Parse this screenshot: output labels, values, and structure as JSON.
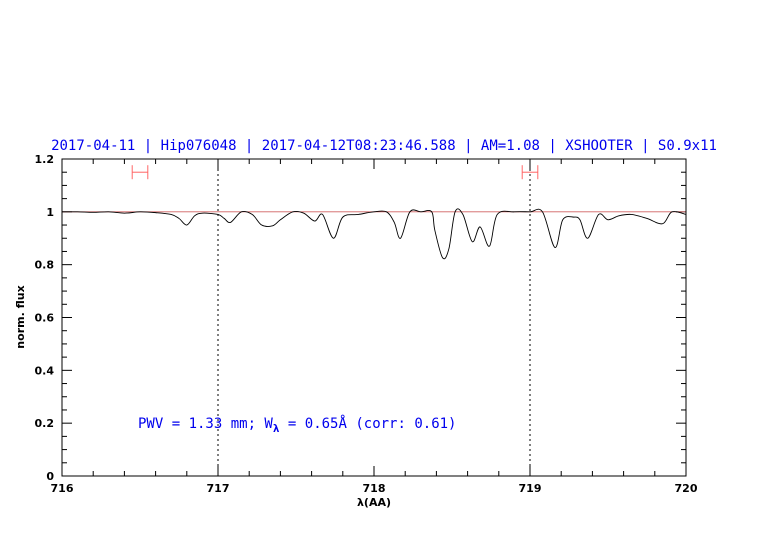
{
  "chart_data": {
    "type": "line",
    "title": "2017-04-11 | Hip076048 | 2017-04-12T08:23:46.588 | AM=1.08 | XSHOOTER | S0.9x11",
    "xlabel": "λ(AA)",
    "ylabel": "norm. flux",
    "xlim": [
      716,
      720
    ],
    "ylim": [
      0,
      1.2
    ],
    "xticks": [
      716,
      717,
      718,
      719,
      720
    ],
    "yticks": [
      0,
      0.2,
      0.4,
      0.6,
      0.8,
      1,
      1.2
    ],
    "ytick_labels": [
      "0",
      "0.2",
      "0.4",
      "0.6",
      "0.8",
      "1",
      "1.2"
    ],
    "grid": false,
    "vertical_dotted_lines": [
      717,
      719
    ],
    "reference_line_y": 1,
    "annotation": {
      "prefix": "PWV = 1.33 mm; W",
      "sub": "λ",
      "suffix": " = 0.65Å (corr: 0.61)"
    },
    "error_bars": [
      {
        "x": [
          716.45,
          716.55
        ],
        "y": 1.15
      },
      {
        "x": [
          718.95,
          719.05
        ],
        "y": 1.15
      }
    ],
    "colors": {
      "title": "#0000ee",
      "spectrum": "#000000",
      "reference": "#d06060",
      "error_bar": "#ff6666"
    },
    "series": [
      {
        "x": [
          716.0,
          716.1,
          716.2,
          716.3,
          716.4,
          716.5,
          716.6,
          716.7,
          716.75,
          716.8,
          716.85,
          716.9,
          717.0,
          717.04,
          717.08,
          717.15,
          717.22,
          717.28,
          717.35,
          717.4,
          717.48,
          717.55,
          717.62,
          717.67,
          717.74,
          717.8,
          717.9,
          718.0,
          718.08,
          718.13,
          718.17,
          718.23,
          718.3,
          718.37,
          718.39,
          718.44,
          718.48,
          718.52,
          718.57,
          718.63,
          718.68,
          718.74,
          718.79,
          718.9,
          719.0,
          719.08,
          719.16,
          719.21,
          719.28,
          719.32,
          719.37,
          719.44,
          719.5,
          719.57,
          719.65,
          719.75,
          719.85,
          719.91,
          720.0
        ],
        "y": [
          1.0,
          1.0,
          0.998,
          1.0,
          0.995,
          1.0,
          0.997,
          0.99,
          0.975,
          0.95,
          0.985,
          0.995,
          0.99,
          0.975,
          0.96,
          1.0,
          0.99,
          0.95,
          0.947,
          0.97,
          1.0,
          0.995,
          0.965,
          0.99,
          0.9,
          0.98,
          0.99,
          1.0,
          1.0,
          0.96,
          0.9,
          1.0,
          1.0,
          1.0,
          0.93,
          0.826,
          0.86,
          1.0,
          0.99,
          0.887,
          0.943,
          0.87,
          0.99,
          1.0,
          1.0,
          1.0,
          0.865,
          0.97,
          0.98,
          0.97,
          0.9,
          0.99,
          0.97,
          0.985,
          0.99,
          0.975,
          0.955,
          1.0,
          0.99
        ]
      }
    ]
  }
}
